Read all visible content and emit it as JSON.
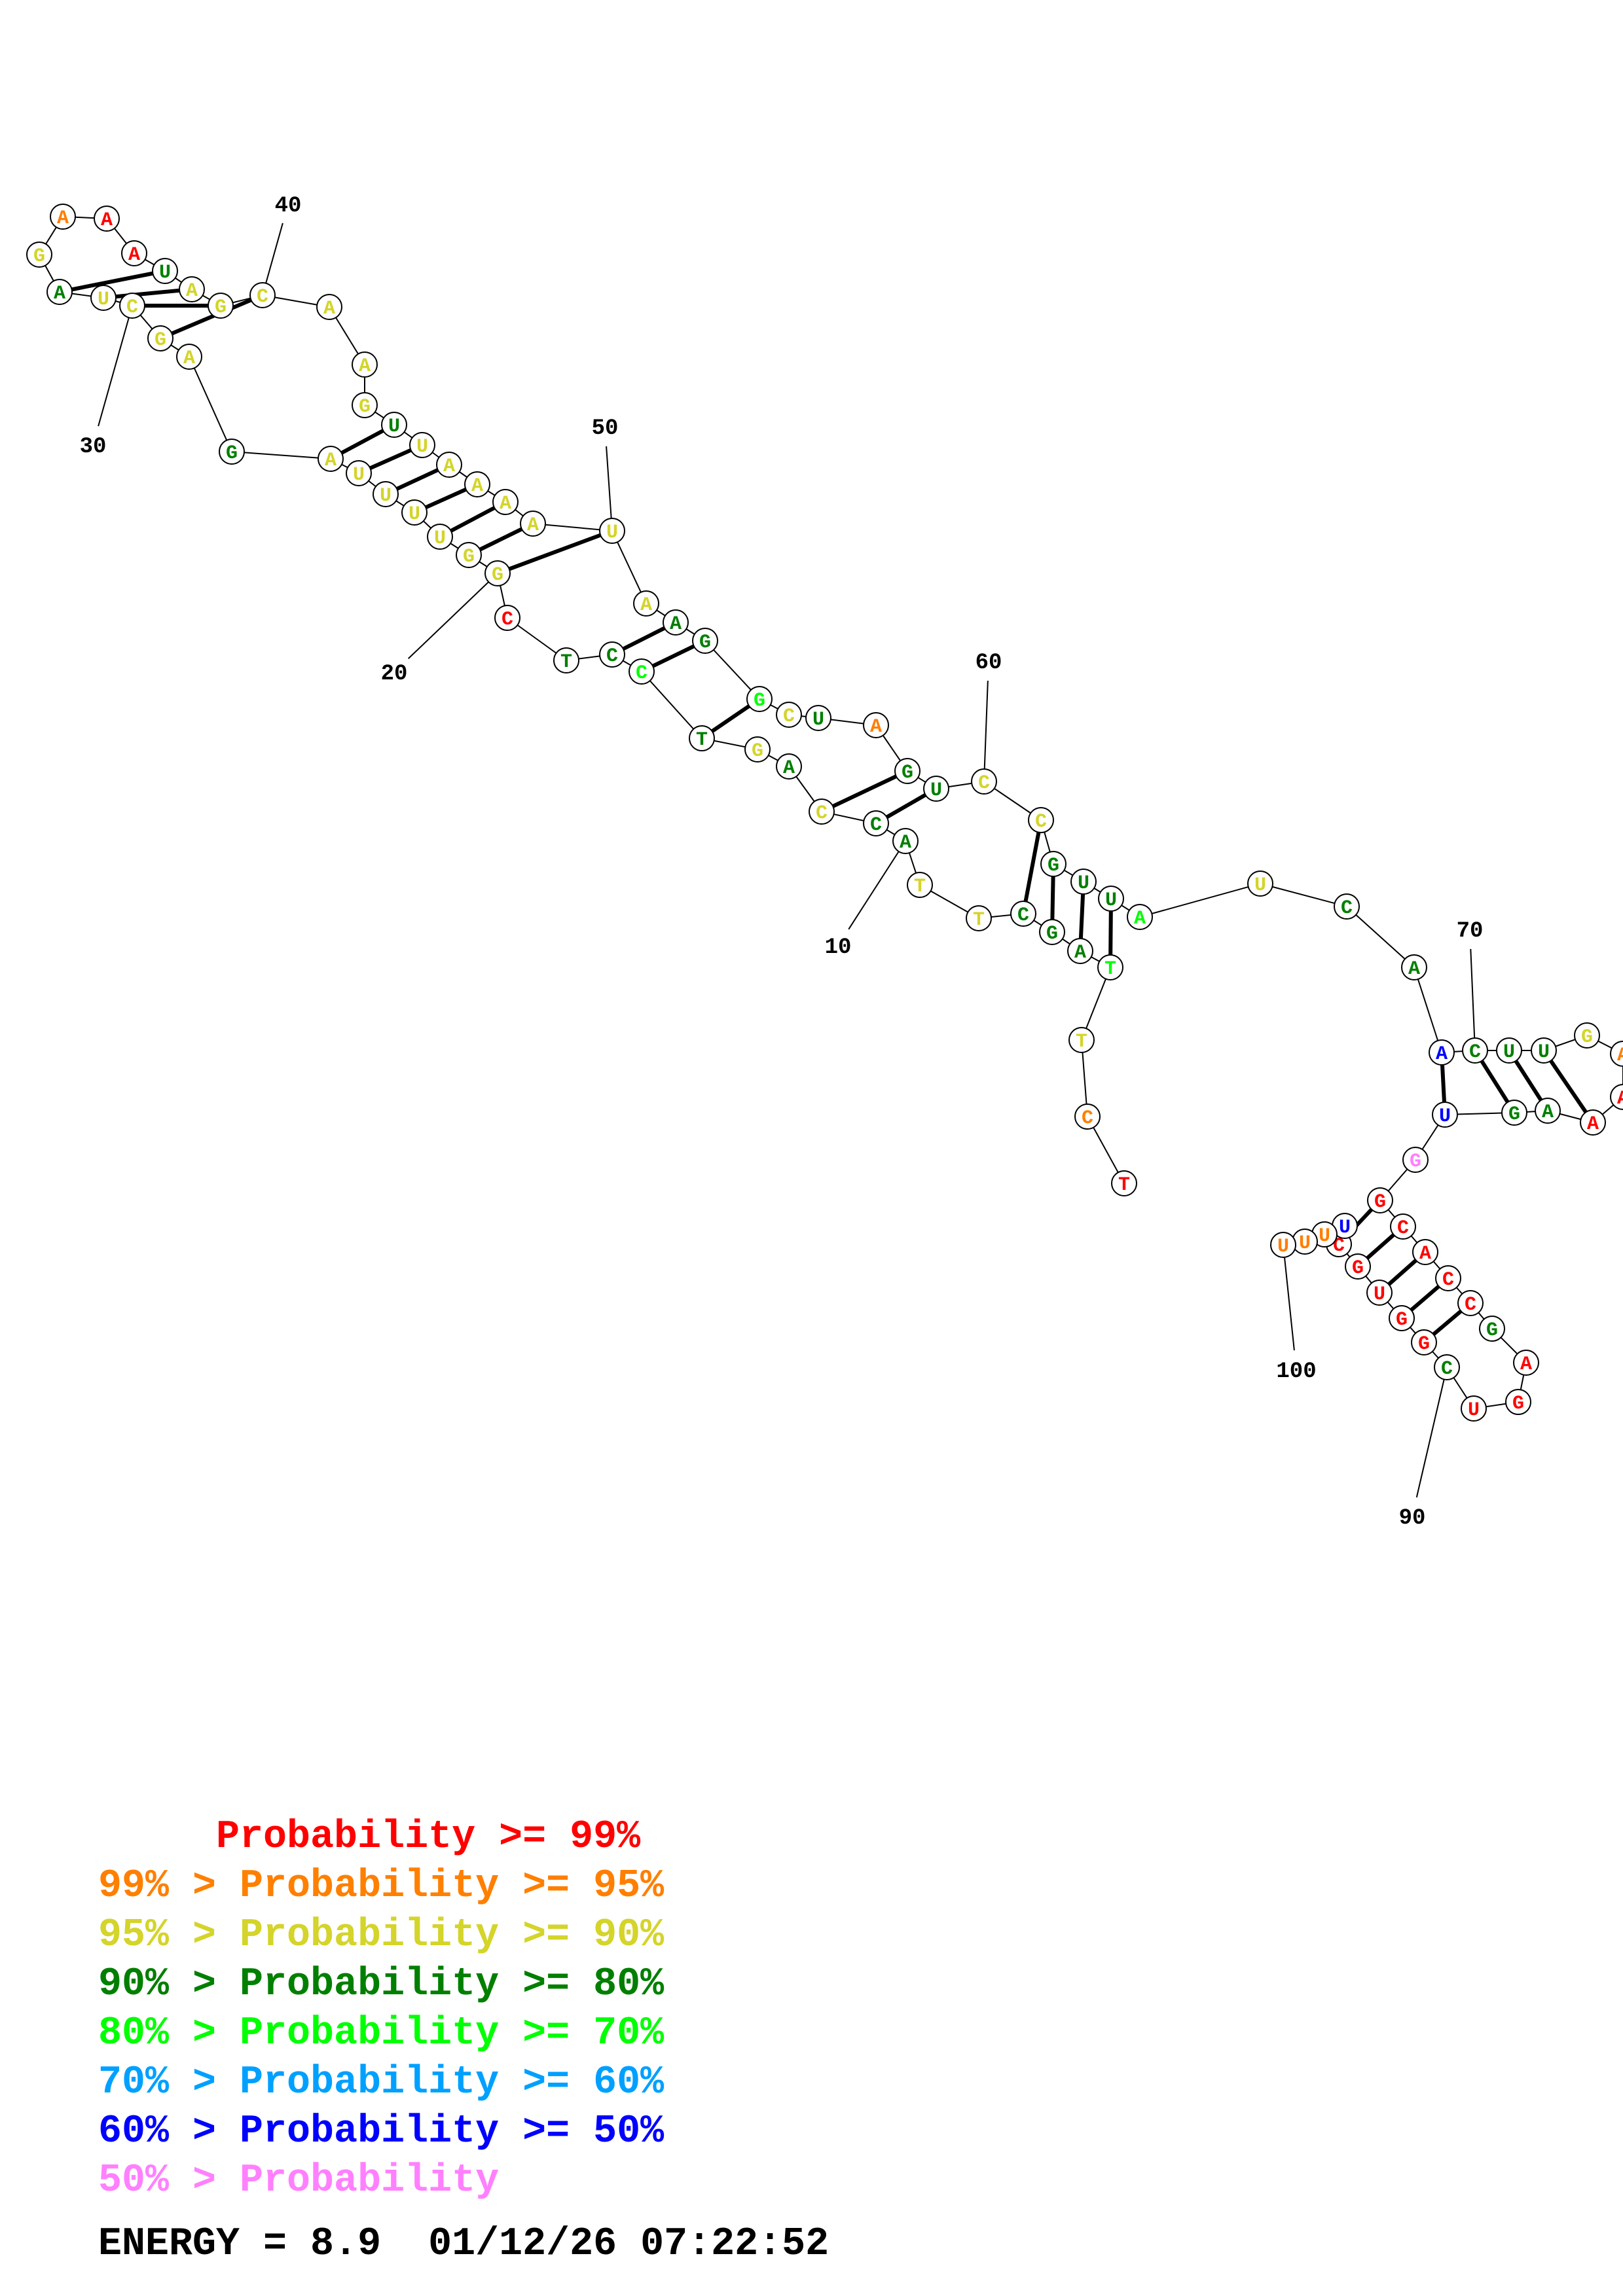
{
  "structure": {
    "nucleotides": [
      {
        "i": 1,
        "base": "T",
        "p": ">=99"
      },
      {
        "i": 2,
        "base": "C",
        "p": "99-95"
      },
      {
        "i": 3,
        "base": "T",
        "p": "95-90"
      },
      {
        "i": 4,
        "base": "T",
        "p": "80-70"
      },
      {
        "i": 5,
        "base": "A",
        "p": "90-80"
      },
      {
        "i": 6,
        "base": "G",
        "p": "90-80"
      },
      {
        "i": 7,
        "base": "C",
        "p": "90-80"
      },
      {
        "i": 8,
        "base": "T",
        "p": "95-90"
      },
      {
        "i": 9,
        "base": "T",
        "p": "95-90"
      },
      {
        "i": 10,
        "base": "A",
        "p": "90-80"
      },
      {
        "i": 11,
        "base": "C",
        "p": "90-80"
      },
      {
        "i": 12,
        "base": "C",
        "p": "95-90"
      },
      {
        "i": 13,
        "base": "A",
        "p": "90-80"
      },
      {
        "i": 14,
        "base": "G",
        "p": "95-90"
      },
      {
        "i": 15,
        "base": "T",
        "p": "90-80"
      },
      {
        "i": 16,
        "base": "C",
        "p": "80-70"
      },
      {
        "i": 17,
        "base": "C",
        "p": "90-80"
      },
      {
        "i": 18,
        "base": "T",
        "p": "90-80"
      },
      {
        "i": 19,
        "base": "C",
        "p": ">=99"
      },
      {
        "i": 20,
        "base": "G",
        "p": "95-90"
      },
      {
        "i": 21,
        "base": "G",
        "p": "95-90"
      },
      {
        "i": 22,
        "base": "U",
        "p": "95-90"
      },
      {
        "i": 23,
        "base": "U",
        "p": "95-90"
      },
      {
        "i": 24,
        "base": "U",
        "p": "95-90"
      },
      {
        "i": 25,
        "base": "U",
        "p": "95-90"
      },
      {
        "i": 26,
        "base": "A",
        "p": "95-90"
      },
      {
        "i": 27,
        "base": "G",
        "p": "90-80"
      },
      {
        "i": 28,
        "base": "A",
        "p": "95-90"
      },
      {
        "i": 29,
        "base": "G",
        "p": "95-90"
      },
      {
        "i": 30,
        "base": "C",
        "p": "95-90"
      },
      {
        "i": 31,
        "base": "U",
        "p": "95-90"
      },
      {
        "i": 32,
        "base": "A",
        "p": "90-80"
      },
      {
        "i": 33,
        "base": "G",
        "p": "95-90"
      },
      {
        "i": 34,
        "base": "A",
        "p": "99-95"
      },
      {
        "i": 35,
        "base": "A",
        "p": ">=99"
      },
      {
        "i": 36,
        "base": "A",
        "p": ">=99"
      },
      {
        "i": 37,
        "base": "U",
        "p": "90-80"
      },
      {
        "i": 38,
        "base": "A",
        "p": "95-90"
      },
      {
        "i": 39,
        "base": "G",
        "p": "95-90"
      },
      {
        "i": 40,
        "base": "C",
        "p": "95-90"
      },
      {
        "i": 41,
        "base": "A",
        "p": "95-90"
      },
      {
        "i": 42,
        "base": "A",
        "p": "95-90"
      },
      {
        "i": 43,
        "base": "G",
        "p": "95-90"
      },
      {
        "i": 44,
        "base": "U",
        "p": "90-80"
      },
      {
        "i": 45,
        "base": "U",
        "p": "95-90"
      },
      {
        "i": 46,
        "base": "A",
        "p": "95-90"
      },
      {
        "i": 47,
        "base": "A",
        "p": "95-90"
      },
      {
        "i": 48,
        "base": "A",
        "p": "95-90"
      },
      {
        "i": 49,
        "base": "A",
        "p": "95-90"
      },
      {
        "i": 50,
        "base": "U",
        "p": "95-90"
      },
      {
        "i": 51,
        "base": "A",
        "p": "95-90"
      },
      {
        "i": 52,
        "base": "A",
        "p": "90-80"
      },
      {
        "i": 53,
        "base": "G",
        "p": "90-80"
      },
      {
        "i": 54,
        "base": "G",
        "p": "80-70"
      },
      {
        "i": 55,
        "base": "C",
        "p": "95-90"
      },
      {
        "i": 56,
        "base": "U",
        "p": "90-80"
      },
      {
        "i": 57,
        "base": "A",
        "p": "99-95"
      },
      {
        "i": 58,
        "base": "G",
        "p": "90-80"
      },
      {
        "i": 59,
        "base": "U",
        "p": "90-80"
      },
      {
        "i": 60,
        "base": "C",
        "p": "95-90"
      },
      {
        "i": 61,
        "base": "C",
        "p": "95-90"
      },
      {
        "i": 62,
        "base": "G",
        "p": "90-80"
      },
      {
        "i": 63,
        "base": "U",
        "p": "90-80"
      },
      {
        "i": 64,
        "base": "U",
        "p": "90-80"
      },
      {
        "i": 65,
        "base": "A",
        "p": "80-70"
      },
      {
        "i": 66,
        "base": "U",
        "p": "95-90"
      },
      {
        "i": 67,
        "base": "C",
        "p": "90-80"
      },
      {
        "i": 68,
        "base": "A",
        "p": "90-80"
      },
      {
        "i": 69,
        "base": "A",
        "p": "60-50"
      },
      {
        "i": 70,
        "base": "C",
        "p": "90-80"
      },
      {
        "i": 71,
        "base": "U",
        "p": "90-80"
      },
      {
        "i": 72,
        "base": "U",
        "p": "90-80"
      },
      {
        "i": 73,
        "base": "G",
        "p": "95-90"
      },
      {
        "i": 74,
        "base": "A",
        "p": "99-95"
      },
      {
        "i": 75,
        "base": "A",
        "p": ">=99"
      },
      {
        "i": 76,
        "base": "A",
        "p": ">=99"
      },
      {
        "i": 77,
        "base": "A",
        "p": "90-80"
      },
      {
        "i": 78,
        "base": "G",
        "p": "90-80"
      },
      {
        "i": 79,
        "base": "U",
        "p": "60-50"
      },
      {
        "i": 80,
        "base": "G",
        "p": "<50"
      },
      {
        "i": 81,
        "base": "G",
        "p": ">=99"
      },
      {
        "i": 82,
        "base": "C",
        "p": ">=99"
      },
      {
        "i": 83,
        "base": "A",
        "p": ">=99"
      },
      {
        "i": 84,
        "base": "C",
        "p": ">=99"
      },
      {
        "i": 85,
        "base": "C",
        "p": ">=99"
      },
      {
        "i": 86,
        "base": "G",
        "p": "90-80"
      },
      {
        "i": 87,
        "base": "A",
        "p": ">=99"
      },
      {
        "i": 88,
        "base": "G",
        "p": ">=99"
      },
      {
        "i": 89,
        "base": "U",
        "p": ">=99"
      },
      {
        "i": 90,
        "base": "C",
        "p": "90-80"
      },
      {
        "i": 91,
        "base": "G",
        "p": ">=99"
      },
      {
        "i": 92,
        "base": "G",
        "p": ">=99"
      },
      {
        "i": 93,
        "base": "U",
        "p": ">=99"
      },
      {
        "i": 94,
        "base": "G",
        "p": ">=99"
      },
      {
        "i": 95,
        "base": "C",
        "p": ">=99"
      },
      {
        "i": 96,
        "base": "U",
        "p": "60-50"
      },
      {
        "i": 97,
        "base": "U",
        "p": "99-95"
      },
      {
        "i": 98,
        "base": "U",
        "p": "99-95"
      },
      {
        "i": 99,
        "base": "U",
        "p": "99-95"
      }
    ],
    "pairs": [
      [
        4,
        64
      ],
      [
        5,
        63
      ],
      [
        6,
        62
      ],
      [
        7,
        61
      ],
      [
        11,
        59
      ],
      [
        12,
        58
      ],
      [
        15,
        54
      ],
      [
        16,
        53
      ],
      [
        17,
        52
      ],
      [
        20,
        50
      ],
      [
        21,
        49
      ],
      [
        22,
        48
      ],
      [
        23,
        47
      ],
      [
        24,
        46
      ],
      [
        25,
        45
      ],
      [
        26,
        44
      ],
      [
        29,
        40
      ],
      [
        30,
        39
      ],
      [
        31,
        38
      ],
      [
        32,
        37
      ],
      [
        69,
        79
      ],
      [
        70,
        78
      ],
      [
        71,
        77
      ],
      [
        72,
        76
      ],
      [
        81,
        95
      ],
      [
        82,
        94
      ],
      [
        83,
        93
      ],
      [
        84,
        92
      ],
      [
        85,
        91
      ]
    ],
    "tick_labels": [
      "10",
      "20",
      "30",
      "40",
      "50",
      "60",
      "70",
      "90",
      "100"
    ],
    "colors": {
      ">=99": "#ff0000",
      "99-95": "#ff7f00",
      "95-90": "#d4d42a",
      "90-80": "#007f00",
      "80-70": "#00ff00",
      "70-60": "#00a0ff",
      "60-50": "#0000ff",
      "<50": "#ff80ff"
    }
  },
  "legend": [
    {
      "text": "     Probability >= 99%",
      "color": "#ff0000"
    },
    {
      "text": "99% > Probability >= 95%",
      "color": "#ff7f00"
    },
    {
      "text": "95% > Probability >= 90%",
      "color": "#d4d42a"
    },
    {
      "text": "90% > Probability >= 80%",
      "color": "#007f00"
    },
    {
      "text": "80% > Probability >= 70%",
      "color": "#00ff00"
    },
    {
      "text": "70% > Probability >= 60%",
      "color": "#00a0ff"
    },
    {
      "text": "60% > Probability >= 50%",
      "color": "#0000ff"
    },
    {
      "text": "50% > Probability",
      "color": "#ff80ff"
    }
  ],
  "footer": {
    "energy_text": "ENERGY = 8.9  01/12/26 07:22:52"
  }
}
